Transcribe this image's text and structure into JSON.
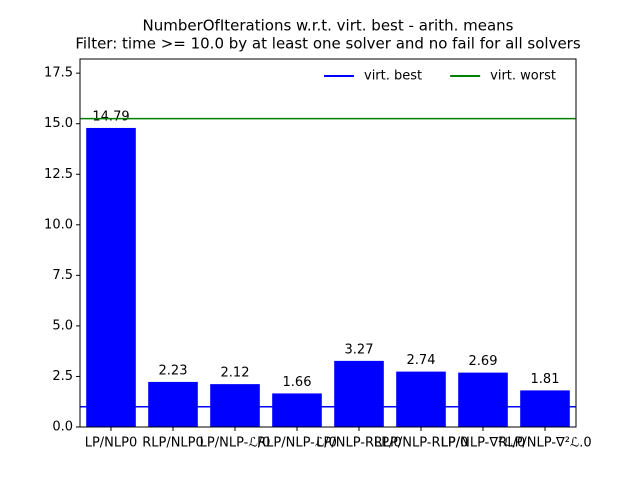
{
  "chart_data": {
    "type": "bar",
    "title": "NumberOfIterations w.r.t. virt. best - arith. means",
    "subtitle": "Filter: time >= 10.0 by at least one solver and no fail for all solvers",
    "categories": [
      "LP/NLP0",
      "RLP/NLP0",
      "LP/NLP-ℒ/0",
      "RLP/NLP-ℒ/0",
      "LP/NLP-RLP/0",
      "RLP/NLP-RLP/0",
      "LP/NLP-∇²ℒ/0",
      "RLP/NLP-∇²ℒ.0"
    ],
    "values": [
      14.79,
      2.23,
      2.12,
      1.66,
      3.27,
      2.74,
      2.69,
      1.81
    ],
    "color": "#0000ff",
    "reference_lines": [
      {
        "name": "virt. best",
        "color": "#0000ff",
        "value": 1.0
      },
      {
        "name": "virt. worst",
        "color": "#008000",
        "value": 15.25
      }
    ],
    "ylim": [
      0,
      18.2
    ],
    "yticks": [
      {
        "value": 0,
        "label": "0.0"
      },
      {
        "value": 2.5,
        "label": "2.5"
      },
      {
        "value": 5,
        "label": "5.0"
      },
      {
        "value": 7.5,
        "label": "7.5"
      },
      {
        "value": 10,
        "label": "10.0"
      },
      {
        "value": 12.5,
        "label": "12.5"
      },
      {
        "value": 15,
        "label": "15.0"
      },
      {
        "value": 17.5,
        "label": "17.5"
      }
    ],
    "legend": "upper right"
  }
}
